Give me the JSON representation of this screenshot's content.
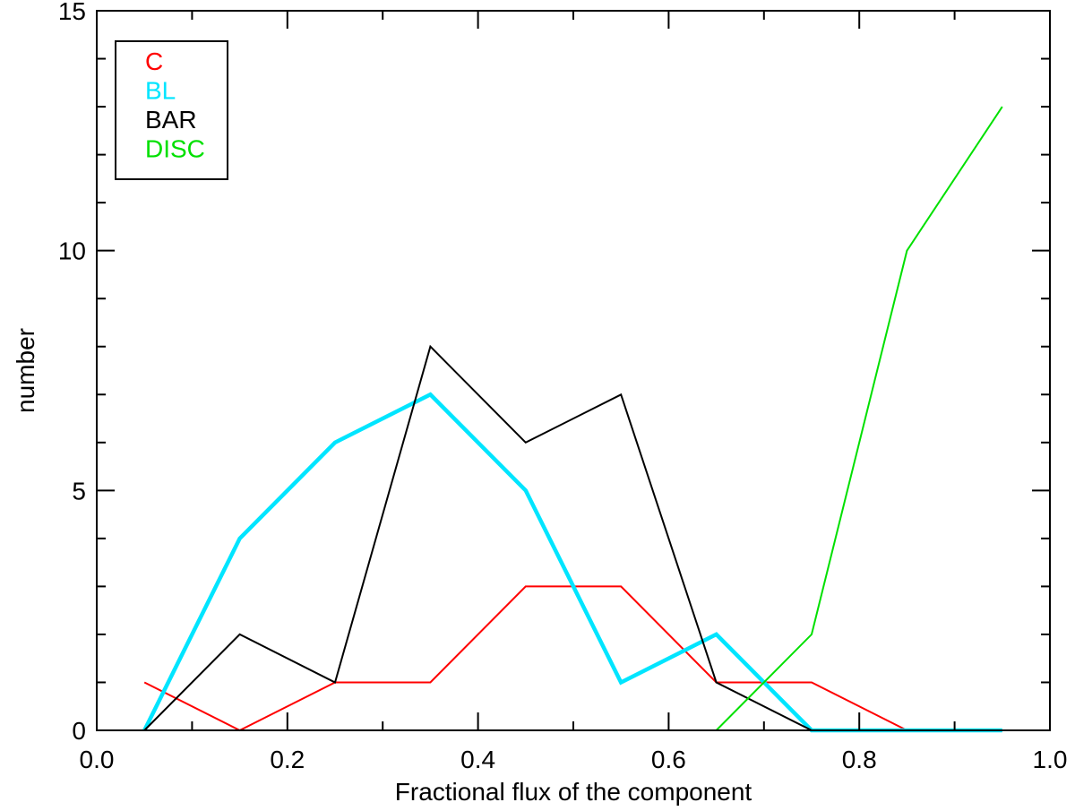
{
  "chart_data": {
    "type": "line",
    "title": "",
    "xlabel": "Fractional flux of the component",
    "ylabel": "number",
    "xlim": [
      0.0,
      1.0
    ],
    "ylim": [
      0,
      15
    ],
    "x": [
      0.05,
      0.15,
      0.25,
      0.35,
      0.45,
      0.55,
      0.65,
      0.75,
      0.85,
      0.95
    ],
    "xticks": [
      "0.0",
      "0.2",
      "0.4",
      "0.6",
      "0.8",
      "1.0"
    ],
    "yticks": [
      "0",
      "5",
      "10",
      "15"
    ],
    "grid": false,
    "legend_position": "top-left",
    "series": [
      {
        "name": "C",
        "color": "#ff0000",
        "values": [
          1,
          0,
          1,
          1,
          3,
          3,
          1,
          1,
          0,
          0
        ]
      },
      {
        "name": "BL",
        "color": "#00e5ff",
        "values": [
          0,
          4,
          6,
          7,
          5,
          1,
          2,
          0,
          0,
          0
        ]
      },
      {
        "name": "BAR",
        "color": "#000000",
        "values": [
          0,
          2,
          1,
          8,
          6,
          7,
          1,
          0,
          0,
          0
        ]
      },
      {
        "name": "DISC",
        "color": "#00e000",
        "values": [
          0,
          0,
          0,
          0,
          0,
          0,
          0,
          2,
          10,
          13
        ]
      }
    ]
  }
}
